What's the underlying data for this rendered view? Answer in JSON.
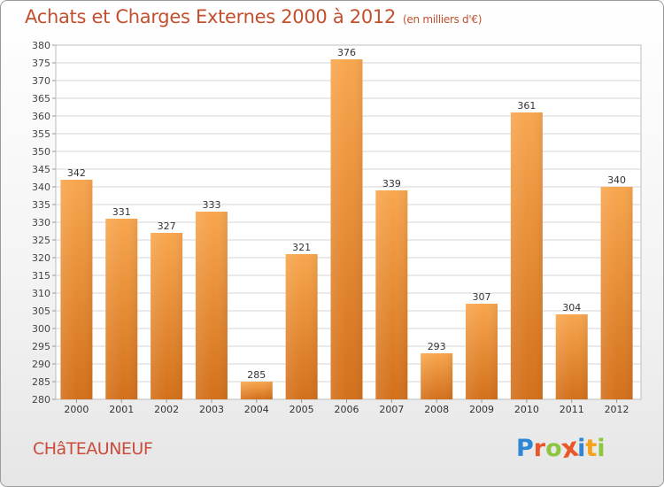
{
  "header": {
    "title": "Achats et Charges Externes 2000 à 2012",
    "unit": "(en milliers d'€)"
  },
  "commune": "CHâTEAUNEUF",
  "logo": {
    "letters": [
      {
        "ch": "P",
        "color": "#2e86d6"
      },
      {
        "ch": "r",
        "color": "#e8562a"
      },
      {
        "ch": "o",
        "color": "#8cc63f"
      },
      {
        "ch": "x",
        "color": "#e8562a"
      },
      {
        "ch": "i",
        "color": "#2e86d6"
      },
      {
        "ch": "t",
        "color": "#f6a01a"
      },
      {
        "ch": "i",
        "color": "#8cc63f"
      }
    ]
  },
  "chart_data": {
    "type": "bar",
    "title": "Achats et Charges Externes 2000 à 2012",
    "subtitle": "(en milliers d'€)",
    "categories": [
      "2000",
      "2001",
      "2002",
      "2003",
      "2004",
      "2005",
      "2006",
      "2007",
      "2008",
      "2009",
      "2010",
      "2011",
      "2012"
    ],
    "values": [
      342,
      331,
      327,
      333,
      285,
      321,
      376,
      339,
      293,
      307,
      361,
      304,
      340
    ],
    "ylim": [
      280,
      380
    ],
    "yticks": [
      280,
      285,
      290,
      295,
      300,
      305,
      310,
      315,
      320,
      325,
      330,
      335,
      340,
      345,
      350,
      355,
      360,
      365,
      370,
      375,
      380
    ],
    "grid": true,
    "bar_colors": {
      "light": "#f7a44c",
      "dark": "#d5731d"
    }
  }
}
